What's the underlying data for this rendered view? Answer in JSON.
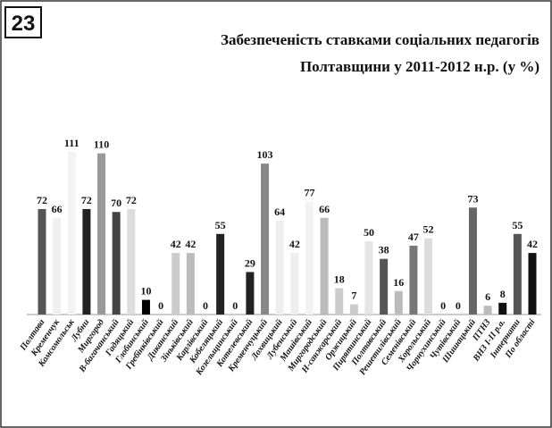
{
  "chart_data": {
    "type": "bar",
    "badge": "23",
    "title": [
      "Забезпеченість ставками соціальних педагогів",
      "Полтавщини у 2011-2012 н.р. (у %)"
    ],
    "categories": [
      "Полтава",
      "Кременчук",
      "Комсомольськ",
      "Лубни",
      "Миргород",
      "В-багачанський",
      "Гадяцький",
      "Глобинський",
      "Гребінківський",
      "Диканський",
      "Зіньківський",
      "Карлівський",
      "Кобеляцький",
      "Козельщинський",
      "Котелевський",
      "Кременчуцький",
      "Лохвицький",
      "Лубенський",
      "Машівський",
      "Миргородський",
      "Н-санжарський",
      "Оржицький",
      "Пирятинський",
      "Полтавський",
      "Решетилівський",
      "Семенівський",
      "Хорольський",
      "Чорнухинський",
      "Чутівський",
      "Шишацький",
      "ПТНЗ",
      "ВНЗ І-ІІ р.а.",
      "Інтернати",
      "По області"
    ],
    "values": [
      72,
      66,
      111,
      72,
      110,
      70,
      72,
      10,
      0,
      42,
      42,
      0,
      55,
      0,
      29,
      103,
      64,
      42,
      77,
      66,
      18,
      7,
      50,
      38,
      16,
      47,
      52,
      0,
      0,
      73,
      6,
      8,
      55,
      42
    ],
    "colors": [
      "#555555",
      "#f0f0f0",
      "#f3f3f3",
      "#222222",
      "#999999",
      "#444444",
      "#dddddd",
      "#000000",
      "#cccccc",
      "#cccccc",
      "#bbbbbb",
      "#cccccc",
      "#222222",
      "#cccccc",
      "#222222",
      "#888888",
      "#eeeeee",
      "#eeeeee",
      "#f2f2f2",
      "#bbbbbb",
      "#cccccc",
      "#cccccc",
      "#e5e5e5",
      "#555555",
      "#bbbbbb",
      "#777777",
      "#dddddd",
      "#cccccc",
      "#cccccc",
      "#666666",
      "#bbbbbb",
      "#111111",
      "#555555",
      "#111111"
    ]
  }
}
